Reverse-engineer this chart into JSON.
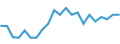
{
  "x": [
    0,
    1,
    2,
    3,
    4,
    5,
    6,
    7,
    8,
    9,
    10,
    11,
    12,
    13,
    14,
    15,
    16,
    17,
    18,
    19,
    20
  ],
  "y": [
    6.0,
    6.0,
    3.5,
    3.4,
    5.0,
    3.4,
    3.4,
    5.2,
    6.5,
    9.5,
    8.5,
    10.0,
    8.5,
    9.0,
    6.5,
    8.5,
    7.0,
    8.0,
    7.5,
    8.5,
    8.5
  ],
  "line_color": "#3d9fd4",
  "linewidth": 1.5,
  "background_color": "#ffffff",
  "ylim": [
    2.0,
    12.0
  ],
  "xlim": [
    -0.2,
    20.2
  ]
}
